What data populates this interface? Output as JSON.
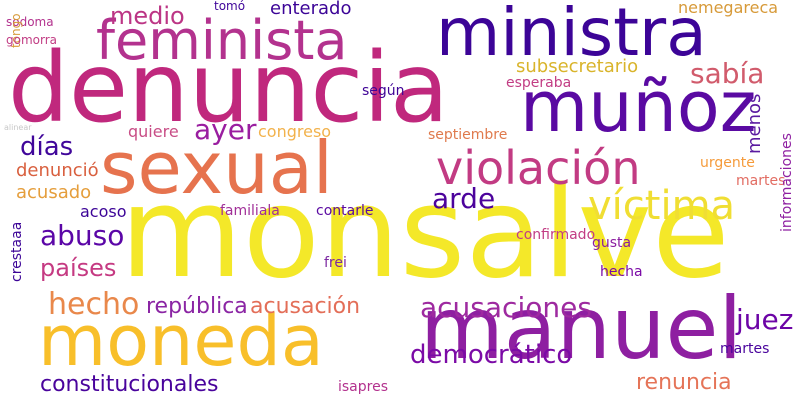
{
  "words": [
    {
      "text": "denuncia",
      "color": "#c0287d"
    },
    {
      "text": "monsalve",
      "color": "#f4e829"
    },
    {
      "text": "moneda",
      "color": "#f8bf2a"
    },
    {
      "text": "manuel",
      "color": "#8e1fa1"
    },
    {
      "text": "sexual",
      "color": "#e6734e"
    },
    {
      "text": "ministra",
      "color": "#3c0497"
    },
    {
      "text": "feminista",
      "color": "#b3328e"
    },
    {
      "text": "muñoz",
      "color": "#5a0aa2"
    },
    {
      "text": "violación",
      "color": "#c23b83"
    },
    {
      "text": "víctima",
      "color": "#f0de33"
    },
    {
      "text": "hecho",
      "color": "#e9884b"
    },
    {
      "text": "acusaciones",
      "color": "#9e2aa0"
    },
    {
      "text": "acusación",
      "color": "#e36e58"
    },
    {
      "text": "república",
      "color": "#8b25a4"
    },
    {
      "text": "abuso",
      "color": "#5b06a7"
    },
    {
      "text": "países",
      "color": "#c53a82"
    },
    {
      "text": "democrático",
      "color": "#7b0aa6"
    },
    {
      "text": "renuncia",
      "color": "#e57458"
    },
    {
      "text": "constitucionales",
      "color": "#49039c"
    },
    {
      "text": "juez",
      "color": "#6c04a6"
    },
    {
      "text": "arde",
      "color": "#4c039c"
    },
    {
      "text": "ayer",
      "color": "#9a1ea0"
    },
    {
      "text": "sabía",
      "color": "#d15b6c"
    },
    {
      "text": "días",
      "color": "#40069a"
    },
    {
      "text": "medio",
      "color": "#bc3585"
    },
    {
      "text": "enterado",
      "color": "#3c0497"
    },
    {
      "text": "subsecretario",
      "color": "#d9b42b"
    },
    {
      "text": "nemegareca",
      "color": "#d79a39"
    },
    {
      "text": "denunció",
      "color": "#d9603f"
    },
    {
      "text": "acusado",
      "color": "#e59e3c"
    },
    {
      "text": "congreso",
      "color": "#f2b24c"
    },
    {
      "text": "quiere",
      "color": "#c84d86"
    },
    {
      "text": "según",
      "color": "#3f0396"
    },
    {
      "text": "esperaba",
      "color": "#c23d84"
    },
    {
      "text": "septiembre",
      "color": "#df7a4c"
    },
    {
      "text": "menos",
      "color": "#5a1aa0"
    },
    {
      "text": "urgente",
      "color": "#f59b3b"
    },
    {
      "text": "martes",
      "color": "#e26d63"
    },
    {
      "text": "acoso",
      "color": "#3c0497"
    },
    {
      "text": "familiala",
      "color": "#a12f98"
    },
    {
      "text": "contarle",
      "color": "#5a0aa2"
    },
    {
      "text": "confirmado",
      "color": "#c23d84"
    },
    {
      "text": "hecha",
      "color": "#7b0aa6"
    },
    {
      "text": "gusta",
      "color": "#8b1ea0"
    },
    {
      "text": "frei",
      "color": "#7d2aa2"
    },
    {
      "text": "crestaaa",
      "color": "#3c0497"
    },
    {
      "text": "martes",
      "color": "#49039c"
    },
    {
      "text": "isapres",
      "color": "#b3328e"
    },
    {
      "text": "informaciones",
      "color": "#8e1fa1"
    },
    {
      "text": "tomó",
      "color": "#40069a"
    },
    {
      "text": "sodoma",
      "color": "#b3328e"
    },
    {
      "text": "tongo",
      "color": "#d79a39"
    },
    {
      "text": "gomorra",
      "color": "#c23d84"
    },
    {
      "text": "alinear",
      "color": "#c8c8c8"
    }
  ]
}
